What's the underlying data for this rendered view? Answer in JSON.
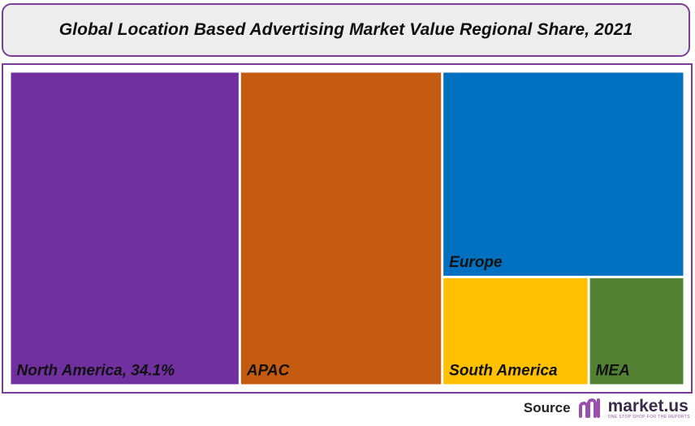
{
  "title": "Global Location Based Advertising Market Value Regional Share, 2021",
  "chart_data": {
    "type": "treemap",
    "title": "Global Location Based Advertising Market Value Regional Share, 2021",
    "unit": "%",
    "items": [
      {
        "label": "North America, 34.1%",
        "name": "North America",
        "value": 34.1,
        "color": "#7030a0"
      },
      {
        "label": "APAC",
        "name": "APAC",
        "value": 30.0,
        "color": "#c55a11"
      },
      {
        "label": "Europe",
        "name": "Europe",
        "value": 23.5,
        "color": "#0070c0"
      },
      {
        "label": "South America",
        "name": "South America",
        "value": 7.5,
        "color": "#ffc000"
      },
      {
        "label": "MEA",
        "name": "MEA",
        "value": 4.9,
        "color": "#548235"
      }
    ]
  },
  "footer": {
    "source_label": "Source",
    "brand_name": "market.us",
    "brand_tagline": "ONE STOP SHOP FOR THE REPORTS",
    "logo_icon": "market-us-logo-icon",
    "brand_color": "#9a4fb0"
  }
}
